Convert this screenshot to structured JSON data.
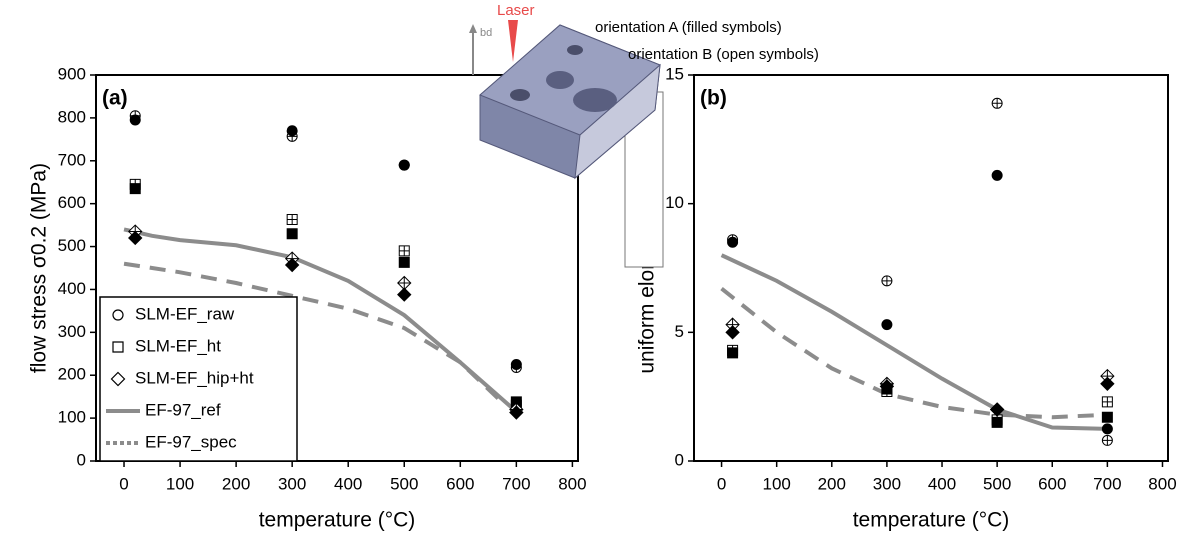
{
  "chart_data": [
    {
      "type": "scatter",
      "panel": "(a)",
      "xlabel": "temperature (°C)",
      "ylabel": "flow stress σ0.2 (MPa)",
      "xlim": [
        -50,
        810
      ],
      "xticks": [
        0,
        100,
        200,
        300,
        400,
        500,
        600,
        700,
        800
      ],
      "ylim": [
        0,
        900
      ],
      "yticks": [
        0,
        100,
        200,
        300,
        400,
        500,
        600,
        700,
        800,
        900
      ],
      "legend": "lower left",
      "series": [
        {
          "name": "SLM-EF_raw",
          "kind": "points",
          "marker": "circle",
          "color": "#000000",
          "x": [
            20,
            300,
            500,
            700
          ],
          "filled": [
            795,
            770,
            690,
            225
          ],
          "open": [
            805,
            757,
            690,
            218
          ]
        },
        {
          "name": "SLM-EF_ht",
          "kind": "points",
          "marker": "square",
          "color": "#000000",
          "x": [
            20,
            300,
            500,
            700
          ],
          "filled": [
            635,
            530,
            463,
            138
          ],
          "open": [
            645,
            563,
            490,
            130
          ]
        },
        {
          "name": "SLM-EF_hip+ht",
          "kind": "points",
          "marker": "diamond",
          "color": "#000000",
          "x": [
            20,
            300,
            500,
            700
          ],
          "filled": [
            520,
            457,
            388,
            113
          ],
          "open": [
            535,
            472,
            415,
            120
          ]
        },
        {
          "name": "EF-97_ref",
          "kind": "line",
          "style": "solid",
          "color": "#8c8c8c",
          "x": [
            0,
            50,
            100,
            200,
            300,
            400,
            500,
            600,
            700
          ],
          "values": [
            540,
            525,
            515,
            503,
            475,
            420,
            340,
            230,
            115
          ]
        },
        {
          "name": "EF-97_spec",
          "kind": "line",
          "style": "dashed",
          "color": "#8c8c8c",
          "x": [
            0,
            100,
            200,
            300,
            400,
            500,
            600,
            680
          ],
          "values": [
            460,
            440,
            415,
            385,
            355,
            310,
            230,
            130
          ]
        }
      ]
    },
    {
      "type": "scatter",
      "panel": "(b)",
      "xlabel": "temperature (°C)",
      "ylabel": "uniform elongation (%)",
      "xlim": [
        -50,
        810
      ],
      "xticks": [
        0,
        100,
        200,
        300,
        400,
        500,
        600,
        700,
        800
      ],
      "ylim": [
        0,
        15
      ],
      "yticks": [
        0,
        5,
        10,
        15
      ],
      "series": [
        {
          "name": "SLM-EF_raw",
          "kind": "points",
          "marker": "circle",
          "color": "#000000",
          "x": [
            20,
            300,
            500,
            700
          ],
          "filled": [
            8.5,
            5.3,
            11.1,
            1.25
          ],
          "open": [
            8.6,
            7.0,
            13.9,
            0.8
          ]
        },
        {
          "name": "SLM-EF_ht",
          "kind": "points",
          "marker": "square",
          "color": "#000000",
          "x": [
            20,
            300,
            500,
            700
          ],
          "filled": [
            4.2,
            2.8,
            1.5,
            1.7
          ],
          "open": [
            4.3,
            2.7,
            1.6,
            2.3
          ]
        },
        {
          "name": "SLM-EF_hip+ht",
          "kind": "points",
          "marker": "diamond",
          "color": "#000000",
          "x": [
            20,
            300,
            500,
            700
          ],
          "filled": [
            5.0,
            2.9,
            2.0,
            3.0
          ],
          "open": [
            5.3,
            3.0,
            2.0,
            3.3
          ]
        },
        {
          "name": "EF-97_ref",
          "kind": "line",
          "style": "solid",
          "color": "#8c8c8c",
          "x": [
            0,
            100,
            200,
            300,
            400,
            500,
            600,
            700
          ],
          "values": [
            8.0,
            7.0,
            5.8,
            4.5,
            3.2,
            2.0,
            1.3,
            1.25
          ]
        },
        {
          "name": "EF-97_spec",
          "kind": "line",
          "style": "dashed",
          "color": "#8c8c8c",
          "x": [
            0,
            100,
            200,
            300,
            400,
            500,
            600,
            700
          ],
          "values": [
            6.7,
            5.0,
            3.6,
            2.6,
            2.1,
            1.8,
            1.7,
            1.8
          ]
        }
      ]
    }
  ],
  "inset": {
    "laser": "Laser",
    "build_direction": "bd",
    "orientation_a": "orientation A (filled symbols)",
    "orientation_b": "orientation B (open symbols)"
  }
}
